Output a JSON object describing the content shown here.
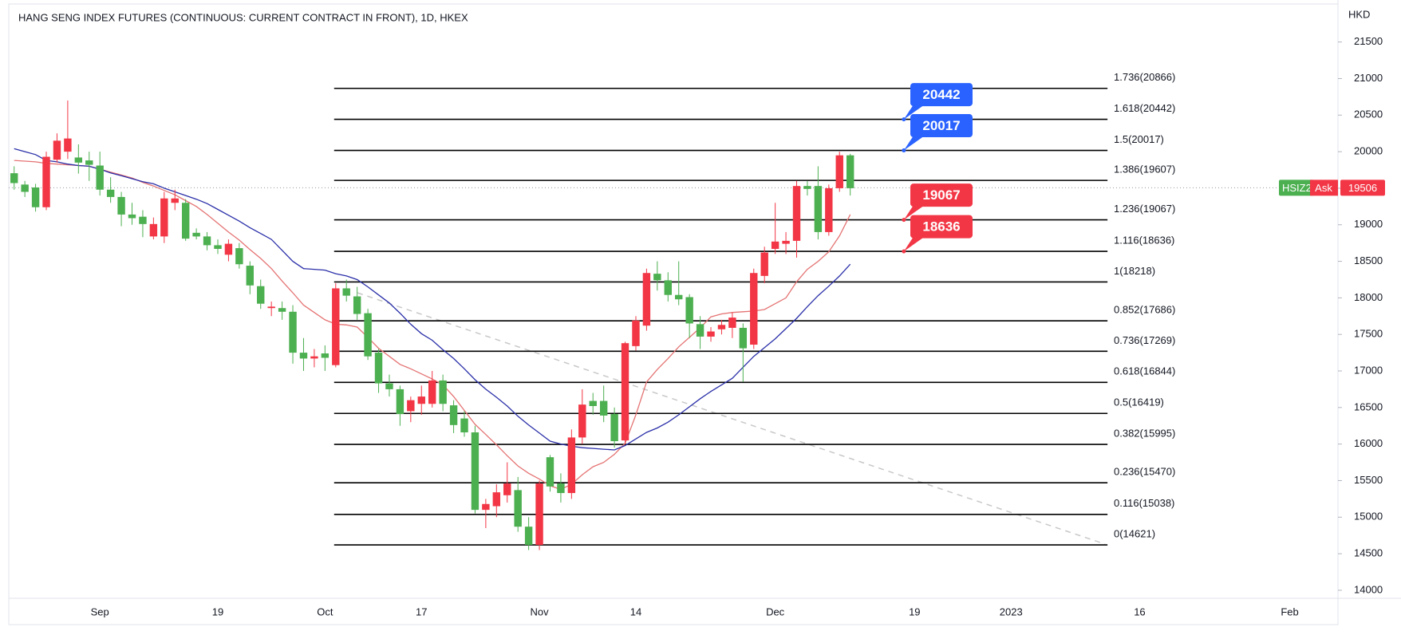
{
  "chart_data": {
    "type": "candlestick",
    "title": "HANG SENG INDEX FUTURES (CONTINUOUS: CURRENT CONTRACT IN FRONT), 1D, HKEX",
    "y_axis_label": "HKD",
    "up_color": "#4caf50",
    "down_color": "#f23645",
    "categories": [
      null,
      null,
      null,
      null,
      null,
      null,
      null,
      null,
      "Sep",
      null,
      null,
      null,
      null,
      null,
      null,
      null,
      null,
      null,
      null,
      "19",
      null,
      null,
      null,
      null,
      null,
      null,
      null,
      null,
      null,
      "Oct",
      null,
      null,
      null,
      null,
      null,
      null,
      null,
      null,
      "17",
      null,
      null,
      null,
      null,
      null,
      null,
      null,
      null,
      null,
      null,
      "Nov",
      null,
      null,
      null,
      null,
      null,
      null,
      null,
      null,
      "14",
      null,
      null,
      null,
      null,
      null,
      null,
      null,
      null,
      null,
      null,
      null,
      null,
      "Dec",
      null,
      null,
      null,
      null,
      null,
      null,
      null,
      null,
      null,
      null,
      null,
      null,
      "19",
      null,
      null,
      null,
      null,
      null,
      null,
      null,
      null,
      "2023",
      null,
      null,
      null,
      null,
      null,
      null,
      null,
      null,
      null,
      null,
      null,
      "16",
      null,
      null,
      null,
      null,
      null,
      null,
      null,
      null,
      null,
      null,
      null,
      null,
      null,
      "Feb",
      null,
      null,
      null,
      null
    ],
    "open": [
      19570,
      19450,
      19240,
      19930,
      20150,
      20180,
      19850,
      19820,
      19480,
      19380,
      19140,
      19090,
      19010,
      19010,
      19360,
      19360,
      18810,
      18840,
      18720,
      18670,
      18740,
      18460,
      18170,
      17920,
      17880,
      17810,
      17250,
      17170,
      17200,
      17180,
      18130,
      18030,
      17780,
      17200,
      16830,
      16750,
      16410,
      16600,
      16650,
      16870,
      16550,
      16260,
      16160,
      15100,
      15180,
      15340,
      15460,
      14870,
      14620,
      15460,
      15420,
      15330,
      16090,
      16540,
      16520,
      16390,
      16040,
      17380,
      17690,
      18340,
      18240,
      18040,
      17980,
      17650,
      17470,
      17540,
      17630,
      17730,
      17310,
      18340,
      18620,
      18770,
      18780,
      19530,
      19490,
      18900,
      19500,
      19950,
      19500,
      null,
      null,
      null,
      null,
      null,
      null,
      null,
      null,
      null,
      null,
      null,
      null,
      null,
      null,
      null,
      null,
      null,
      null,
      null,
      null,
      null,
      null,
      null,
      null,
      null,
      null,
      null,
      null,
      null,
      null,
      null,
      null,
      null,
      null,
      null,
      null,
      null,
      null,
      null,
      null,
      null,
      null,
      null,
      null,
      null
    ],
    "high": [
      19800,
      19600,
      19560,
      20000,
      20250,
      20700,
      20100,
      20000,
      20000,
      19650,
      19450,
      19300,
      19200,
      19100,
      19450,
      19480,
      19350,
      18950,
      18900,
      18800,
      18800,
      18750,
      18500,
      18250,
      17950,
      17950,
      17900,
      17450,
      17300,
      17350,
      18200,
      18250,
      18150,
      17850,
      17300,
      16950,
      16800,
      16650,
      16800,
      17000,
      16950,
      16600,
      16450,
      16250,
      15250,
      15450,
      15750,
      15550,
      15000,
      15500,
      15850,
      15600,
      16200,
      16750,
      16700,
      16800,
      16500,
      17400,
      17750,
      18400,
      18500,
      18350,
      18500,
      18050,
      17750,
      17600,
      17700,
      17800,
      17650,
      18400,
      18700,
      19300,
      18900,
      19600,
      19600,
      19800,
      19550,
      20000,
      19970,
      null,
      null,
      null,
      null,
      null,
      null,
      null,
      null,
      null,
      null,
      null,
      null,
      null,
      null,
      null,
      null,
      null,
      null,
      null,
      null,
      null,
      null,
      null,
      null,
      null,
      null,
      null,
      null,
      null,
      null,
      null,
      null,
      null,
      null,
      null,
      null,
      null,
      null,
      null,
      null,
      null,
      null,
      null,
      null,
      null
    ],
    "low": [
      19480,
      19380,
      19180,
      19200,
      19850,
      19900,
      19700,
      19600,
      19400,
      19300,
      18980,
      19000,
      18830,
      18800,
      18750,
      19200,
      18780,
      18800,
      18650,
      18600,
      18500,
      18400,
      18050,
      17850,
      17750,
      17700,
      17100,
      17000,
      17050,
      17000,
      17050,
      17950,
      17700,
      17150,
      16700,
      16650,
      16250,
      16300,
      16400,
      16500,
      16450,
      16150,
      16100,
      15050,
      14850,
      15000,
      15200,
      14800,
      14550,
      14550,
      15350,
      15200,
      15250,
      16000,
      16400,
      16300,
      15950,
      16000,
      17280,
      17550,
      18100,
      17950,
      17900,
      17450,
      17300,
      17400,
      17500,
      17450,
      16850,
      17300,
      18200,
      18600,
      18600,
      18550,
      19400,
      18800,
      18850,
      19450,
      19400,
      null,
      null,
      null,
      null,
      null,
      null,
      null,
      null,
      null,
      null,
      null,
      null,
      null,
      null,
      null,
      null,
      null,
      null,
      null,
      null,
      null,
      null,
      null,
      null,
      null,
      null,
      null,
      null,
      null,
      null,
      null,
      null,
      null,
      null,
      null,
      null,
      null,
      null,
      null,
      null,
      null,
      null,
      null,
      null,
      null
    ],
    "close": [
      19705,
      19550,
      19510,
      19240,
      19890,
      20000,
      19920,
      19880,
      19810,
      19480,
      19380,
      19140,
      19110,
      18840,
      18840,
      19300,
      19300,
      18890,
      18840,
      18720,
      18590,
      18680,
      18440,
      18160,
      17860,
      17860,
      17810,
      17250,
      17170,
      17240,
      17080,
      18130,
      18020,
      17790,
      17250,
      16830,
      16750,
      16450,
      16550,
      16550,
      16870,
      16530,
      16350,
      16160,
      15100,
      15150,
      15300,
      15370,
      14870,
      14620,
      15820,
      15460,
      15330,
      16090,
      16590,
      16590,
      16410,
      16050,
      17340,
      17620,
      18330,
      18240,
      18040,
      18010,
      17640,
      17470,
      17570,
      17590,
      17590,
      17360,
      18300,
      18670,
      18740,
      18780,
      19530,
      19530,
      18900,
      19500,
      19950,
      null,
      null,
      null,
      null,
      null,
      null,
      null,
      null,
      null,
      null,
      null,
      null,
      null,
      null,
      null,
      null,
      null,
      null,
      null,
      null,
      null,
      null,
      null,
      null,
      null,
      null,
      null,
      null,
      null,
      null,
      null,
      null,
      null,
      null,
      null,
      null,
      null,
      null,
      null,
      null,
      null,
      null,
      null,
      null,
      null
    ],
    "lines": [
      {
        "color": "#e57373",
        "values": [
          19880,
          19870,
          19860,
          19840,
          19830,
          19820,
          19810,
          19800,
          19760,
          19720,
          19680,
          19640,
          19580,
          19530,
          19470,
          19410,
          19330,
          19250,
          19140,
          19020,
          18900,
          18790,
          18660,
          18540,
          18400,
          18230,
          18070,
          17900,
          17800,
          17700,
          17640,
          17630,
          17600,
          17460,
          17310,
          17200,
          17090,
          17030,
          16960,
          16890,
          16810,
          16650,
          16460,
          16270,
          16130,
          15990,
          15840,
          15700,
          15600,
          15520,
          15430,
          15380,
          15450,
          15580,
          15690,
          15750,
          15860,
          16010,
          16400,
          16850,
          17020,
          17170,
          17330,
          17460,
          17590,
          17740,
          17780,
          17800,
          17810,
          17820,
          17840,
          17920,
          18000,
          18220,
          18390,
          18500,
          18630,
          18850,
          19140,
          null,
          null,
          null,
          null,
          null,
          null,
          null,
          null,
          null,
          null,
          null,
          null,
          null,
          null,
          null,
          null,
          null,
          null,
          null,
          null,
          null,
          null,
          null,
          null,
          null,
          null,
          null,
          null,
          null,
          null,
          null,
          null,
          null,
          null,
          null,
          null,
          null,
          null,
          null,
          null,
          null,
          null,
          null,
          null,
          null
        ]
      },
      {
        "color": "#2a2fa8",
        "values": [
          20040,
          20000,
          19960,
          19880,
          19860,
          19830,
          19810,
          19800,
          19760,
          19710,
          19670,
          19630,
          19590,
          19560,
          19500,
          19450,
          19400,
          19350,
          19290,
          19210,
          19130,
          19050,
          18960,
          18880,
          18800,
          18650,
          18500,
          18400,
          18390,
          18380,
          18330,
          18300,
          18250,
          18150,
          18040,
          17930,
          17790,
          17640,
          17510,
          17420,
          17290,
          17170,
          17030,
          16880,
          16750,
          16640,
          16520,
          16380,
          16260,
          16150,
          16040,
          16000,
          15970,
          15950,
          15940,
          15930,
          15920,
          15980,
          16070,
          16160,
          16220,
          16300,
          16400,
          16510,
          16620,
          16720,
          16810,
          16900,
          17050,
          17200,
          17320,
          17440,
          17580,
          17720,
          17880,
          18030,
          18160,
          18300,
          18460,
          null,
          null,
          null,
          null,
          null,
          null,
          null,
          null,
          null,
          null,
          null,
          null,
          null,
          null,
          null,
          null,
          null,
          null,
          null,
          null,
          null,
          null,
          null,
          null,
          null,
          null,
          null,
          null,
          null,
          null,
          null,
          null,
          null,
          null,
          null,
          null,
          null,
          null,
          null,
          null,
          null,
          null,
          null,
          null,
          null
        ]
      }
    ],
    "ylim": [
      13890,
      22020
    ],
    "yticks": [
      14000,
      14500,
      15000,
      15500,
      16000,
      16500,
      17000,
      17500,
      18000,
      18500,
      19000,
      19500,
      20000,
      20500,
      21000,
      21500
    ],
    "fib_levels": [
      {
        "label": "1.736(20866)",
        "value": 20866
      },
      {
        "label": "1.618(20442)",
        "value": 20442
      },
      {
        "label": "1.5(20017)",
        "value": 20017
      },
      {
        "label": "1.386(19607)",
        "value": 19607
      },
      {
        "label": "1.236(19067)",
        "value": 19067
      },
      {
        "label": "1.116(18636)",
        "value": 18636
      },
      {
        "label": "1(18218)",
        "value": 18218
      },
      {
        "label": "0.852(17686)",
        "value": 17686
      },
      {
        "label": "0.736(17269)",
        "value": 17269
      },
      {
        "label": "0.618(16844)",
        "value": 16844
      },
      {
        "label": "0.5(16419)",
        "value": 16419
      },
      {
        "label": "0.382(15995)",
        "value": 15995
      },
      {
        "label": "0.236(15470)",
        "value": 15470
      },
      {
        "label": "0.116(15038)",
        "value": 15038
      },
      {
        "label": "0(14621)",
        "value": 14621
      }
    ],
    "callouts": [
      {
        "value": 20442,
        "color": "#2962ff"
      },
      {
        "value": 20017,
        "color": "#2962ff"
      },
      {
        "value": 19067,
        "color": "#f23645"
      },
      {
        "value": 18636,
        "color": "#f23645"
      }
    ],
    "last_price": {
      "symbol": "HSIZ2",
      "side": "Ask",
      "value": 19506
    }
  }
}
